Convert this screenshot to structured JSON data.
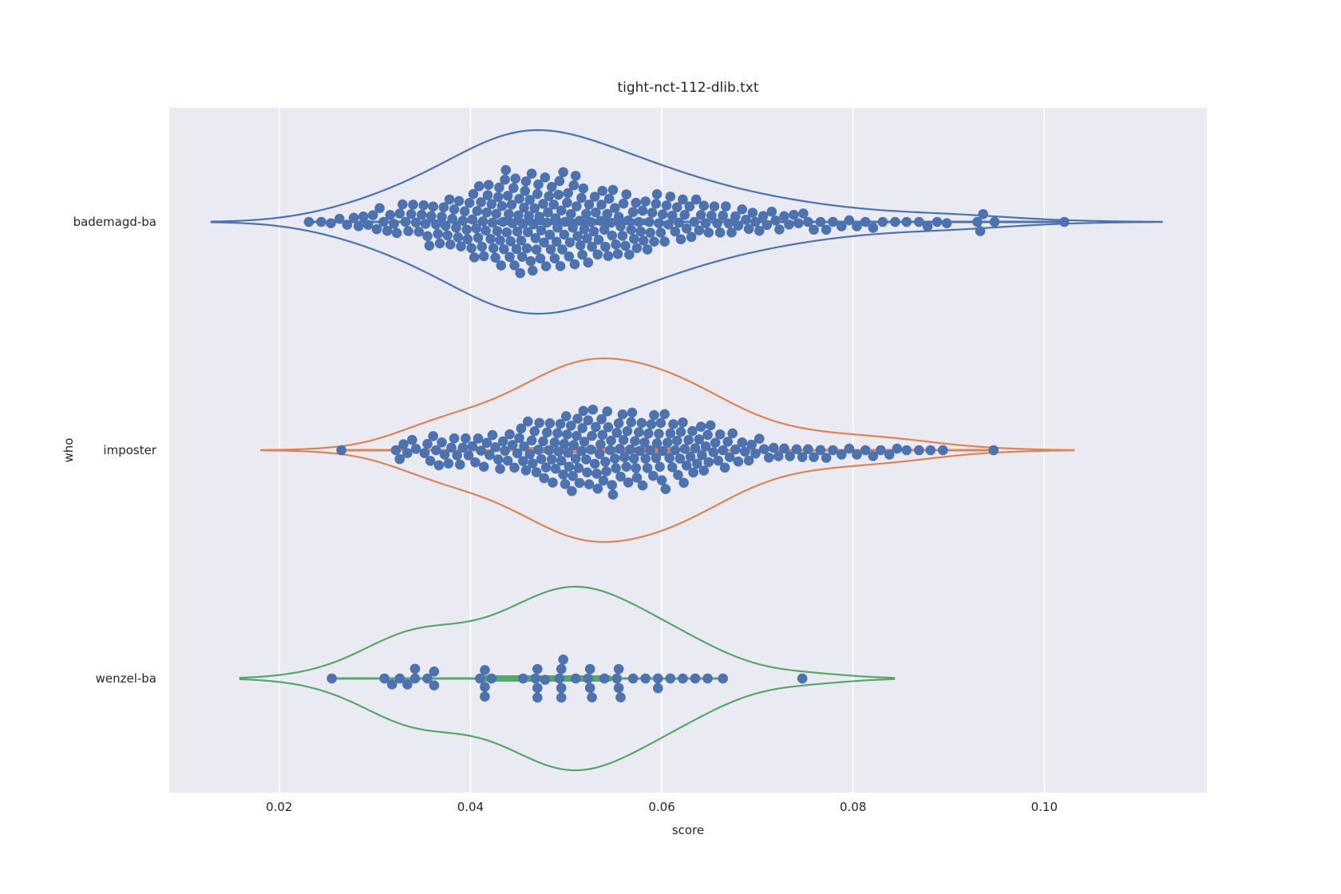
{
  "title": "tight-nct-112-dlib.txt",
  "x_axis": {
    "label": "score",
    "min": 0.0085,
    "max": 0.117,
    "ticks": [
      {
        "value": 0.02,
        "label": "0.02"
      },
      {
        "value": 0.04,
        "label": "0.04"
      },
      {
        "value": 0.06,
        "label": "0.06"
      },
      {
        "value": 0.08,
        "label": "0.08"
      },
      {
        "value": 0.1,
        "label": "0.10"
      }
    ]
  },
  "y_axis": {
    "label": "who",
    "categories": [
      "bademagd-ba",
      "imposter",
      "wenzel-ba"
    ]
  },
  "style": {
    "plot_bg": "#eaeaf2",
    "grid_color": "#ffffff",
    "text_color": "#262626",
    "dot_color": "#4c72b0",
    "dot_radius": 6.3,
    "violin_half_width": 115,
    "violin_stroke": 2.2,
    "whisker_stroke": 3,
    "box_stroke": 8
  },
  "chart_data": {
    "type": "violin+swarm",
    "title": "tight-nct-112-dlib.txt",
    "xlabel": "score",
    "ylabel": "who",
    "xlim": [
      0.0085,
      0.117
    ],
    "grid": "vertical-only",
    "legend": "none",
    "series": [
      {
        "name": "bademagd-ba",
        "color": "#4c72b0",
        "kde_bandwidth": 0.0051,
        "whisker": [
          0.0231,
          0.1021
        ],
        "box": [
          0.043,
          0.0585
        ],
        "scores": [
          0.0231,
          0.0244,
          0.0254,
          0.0263,
          0.0271,
          0.0278,
          0.0283,
          0.0288,
          0.0293,
          0.0298,
          0.0302,
          0.0305,
          0.0309,
          0.0313,
          0.0316,
          0.032,
          0.0323,
          0.0326,
          0.0329,
          0.0332,
          0.0335,
          0.0338,
          0.034,
          0.0343,
          0.0346,
          0.0349,
          0.0351,
          0.0353,
          0.0355,
          0.0357,
          0.0359,
          0.0361,
          0.0364,
          0.0366,
          0.0368,
          0.037,
          0.0372,
          0.0374,
          0.0376,
          0.0378,
          0.0379,
          0.0381,
          0.0383,
          0.0385,
          0.0387,
          0.0388,
          0.039,
          0.0392,
          0.0394,
          0.0396,
          0.0397,
          0.0399,
          0.0401,
          0.0402,
          0.0403,
          0.0404,
          0.0406,
          0.0407,
          0.0408,
          0.0409,
          0.0411,
          0.0412,
          0.0413,
          0.0414,
          0.0416,
          0.0417,
          0.0418,
          0.0419,
          0.0421,
          0.0422,
          0.0423,
          0.0424,
          0.0426,
          0.0427,
          0.0428,
          0.0429,
          0.043,
          0.0431,
          0.0432,
          0.0433,
          0.0434,
          0.0435,
          0.0436,
          0.0437,
          0.0438,
          0.0439,
          0.044,
          0.0441,
          0.0442,
          0.0443,
          0.0444,
          0.0445,
          0.0446,
          0.0447,
          0.0448,
          0.0449,
          0.045,
          0.0451,
          0.0452,
          0.0453,
          0.0454,
          0.0455,
          0.0456,
          0.0457,
          0.0458,
          0.0459,
          0.046,
          0.0461,
          0.0462,
          0.0463,
          0.0464,
          0.0465,
          0.0466,
          0.0467,
          0.0468,
          0.0469,
          0.047,
          0.0471,
          0.0472,
          0.0473,
          0.0474,
          0.0476,
          0.0477,
          0.0478,
          0.0479,
          0.048,
          0.0481,
          0.0482,
          0.0483,
          0.0484,
          0.0485,
          0.0487,
          0.0488,
          0.0489,
          0.049,
          0.0491,
          0.0492,
          0.0493,
          0.0494,
          0.0495,
          0.0496,
          0.0497,
          0.0498,
          0.0499,
          0.0501,
          0.0502,
          0.0503,
          0.0504,
          0.0505,
          0.0507,
          0.0508,
          0.0509,
          0.051,
          0.0511,
          0.0512,
          0.0514,
          0.0515,
          0.0516,
          0.0517,
          0.0518,
          0.0519,
          0.0521,
          0.0522,
          0.0523,
          0.0524,
          0.0526,
          0.0527,
          0.0529,
          0.053,
          0.0531,
          0.0533,
          0.0534,
          0.0536,
          0.0537,
          0.0538,
          0.054,
          0.0541,
          0.0543,
          0.0544,
          0.0545,
          0.0547,
          0.0548,
          0.0549,
          0.0551,
          0.0552,
          0.0554,
          0.0555,
          0.0557,
          0.0559,
          0.056,
          0.0562,
          0.0563,
          0.0565,
          0.0566,
          0.0568,
          0.057,
          0.0571,
          0.0573,
          0.0574,
          0.0576,
          0.0578,
          0.058,
          0.0581,
          0.0583,
          0.0585,
          0.0587,
          0.0588,
          0.059,
          0.0592,
          0.0594,
          0.0595,
          0.0597,
          0.0599,
          0.0601,
          0.0603,
          0.0605,
          0.0607,
          0.0609,
          0.0611,
          0.0614,
          0.0616,
          0.0618,
          0.062,
          0.0622,
          0.0624,
          0.0626,
          0.0629,
          0.0631,
          0.0634,
          0.0636,
          0.0639,
          0.0641,
          0.0644,
          0.0646,
          0.0649,
          0.0652,
          0.0655,
          0.0658,
          0.0661,
          0.0664,
          0.0667,
          0.067,
          0.0673,
          0.0677,
          0.068,
          0.0684,
          0.0688,
          0.0691,
          0.0695,
          0.0698,
          0.0702,
          0.0706,
          0.071,
          0.0715,
          0.0719,
          0.0723,
          0.0728,
          0.0733,
          0.0738,
          0.0743,
          0.0748,
          0.0753,
          0.0759,
          0.0766,
          0.0772,
          0.0779,
          0.0788,
          0.0796,
          0.0804,
          0.0813,
          0.0821,
          0.0831,
          0.0844,
          0.0856,
          0.0869,
          0.0878,
          0.0888,
          0.0898,
          0.093,
          0.0933,
          0.0936,
          0.0948,
          0.1021
        ]
      },
      {
        "name": "imposter",
        "color": "#dd8452",
        "kde_bandwidth": 0.0042,
        "whisker": [
          0.0265,
          0.0947
        ],
        "box": [
          0.046,
          0.0615
        ],
        "scores": [
          0.0265,
          0.0322,
          0.0326,
          0.033,
          0.0334,
          0.0339,
          0.0343,
          0.0352,
          0.0355,
          0.0358,
          0.0361,
          0.0364,
          0.0367,
          0.037,
          0.0373,
          0.0377,
          0.038,
          0.0383,
          0.0386,
          0.0389,
          0.0392,
          0.0395,
          0.0398,
          0.0402,
          0.0405,
          0.0408,
          0.0411,
          0.0414,
          0.0417,
          0.042,
          0.0423,
          0.0426,
          0.0429,
          0.0431,
          0.0434,
          0.0436,
          0.0439,
          0.0441,
          0.0444,
          0.0446,
          0.0449,
          0.0451,
          0.0453,
          0.0455,
          0.0456,
          0.0458,
          0.046,
          0.0462,
          0.0464,
          0.0465,
          0.0467,
          0.0469,
          0.0471,
          0.0472,
          0.0474,
          0.0476,
          0.0477,
          0.0479,
          0.048,
          0.0482,
          0.0483,
          0.0485,
          0.0486,
          0.0488,
          0.0489,
          0.0491,
          0.0492,
          0.0494,
          0.0495,
          0.0497,
          0.0498,
          0.0499,
          0.05,
          0.0501,
          0.0502,
          0.0503,
          0.0505,
          0.0506,
          0.0507,
          0.0508,
          0.051,
          0.0511,
          0.0512,
          0.0513,
          0.0514,
          0.0516,
          0.0517,
          0.0518,
          0.0519,
          0.0521,
          0.0522,
          0.0523,
          0.0524,
          0.0526,
          0.0527,
          0.0528,
          0.053,
          0.0531,
          0.0532,
          0.0533,
          0.0535,
          0.0536,
          0.0537,
          0.0538,
          0.0539,
          0.0541,
          0.0542,
          0.0543,
          0.0544,
          0.0546,
          0.0547,
          0.0548,
          0.0549,
          0.0551,
          0.0552,
          0.0553,
          0.0555,
          0.0556,
          0.0557,
          0.0559,
          0.056,
          0.0561,
          0.0563,
          0.0564,
          0.0565,
          0.0567,
          0.0568,
          0.0569,
          0.0571,
          0.0572,
          0.0573,
          0.0574,
          0.0576,
          0.0577,
          0.0579,
          0.058,
          0.0582,
          0.0583,
          0.0585,
          0.0586,
          0.0588,
          0.0589,
          0.0591,
          0.0592,
          0.0594,
          0.0595,
          0.0597,
          0.0598,
          0.0599,
          0.06,
          0.0601,
          0.0603,
          0.0604,
          0.0606,
          0.0608,
          0.0609,
          0.0611,
          0.0612,
          0.0614,
          0.0616,
          0.0617,
          0.0619,
          0.062,
          0.0622,
          0.0623,
          0.0624,
          0.0626,
          0.0628,
          0.063,
          0.0632,
          0.0633,
          0.0635,
          0.0637,
          0.0639,
          0.0641,
          0.0642,
          0.0644,
          0.0646,
          0.0648,
          0.0649,
          0.0651,
          0.0654,
          0.0656,
          0.0659,
          0.0661,
          0.0664,
          0.0666,
          0.0669,
          0.0671,
          0.0674,
          0.0677,
          0.068,
          0.0684,
          0.0687,
          0.0691,
          0.0694,
          0.0698,
          0.0702,
          0.0707,
          0.0712,
          0.0717,
          0.0722,
          0.0728,
          0.0734,
          0.0741,
          0.0747,
          0.0753,
          0.0759,
          0.0766,
          0.0772,
          0.0779,
          0.0788,
          0.0796,
          0.0804,
          0.0813,
          0.0821,
          0.0829,
          0.0838,
          0.0846,
          0.0856,
          0.0869,
          0.0881,
          0.0894,
          0.0947
        ]
      },
      {
        "name": "wenzel-ba",
        "color": "#55a868",
        "kde_bandwidth": 0.0048,
        "whisker": [
          0.0255,
          0.0664
        ],
        "box": [
          0.0415,
          0.0545
        ],
        "scores": [
          0.0255,
          0.031,
          0.0318,
          0.0326,
          0.0334,
          0.0342,
          0.0342,
          0.0355,
          0.0362,
          0.0362,
          0.041,
          0.0415,
          0.0415,
          0.0415,
          0.0422,
          0.0455,
          0.0468,
          0.047,
          0.047,
          0.047,
          0.0478,
          0.0493,
          0.0495,
          0.0495,
          0.0495,
          0.0497,
          0.051,
          0.0523,
          0.0525,
          0.0525,
          0.0527,
          0.054,
          0.0553,
          0.0555,
          0.0555,
          0.0557,
          0.057,
          0.0583,
          0.0596,
          0.0596,
          0.0609,
          0.0622,
          0.0635,
          0.0648,
          0.0664,
          0.0747
        ]
      }
    ]
  }
}
